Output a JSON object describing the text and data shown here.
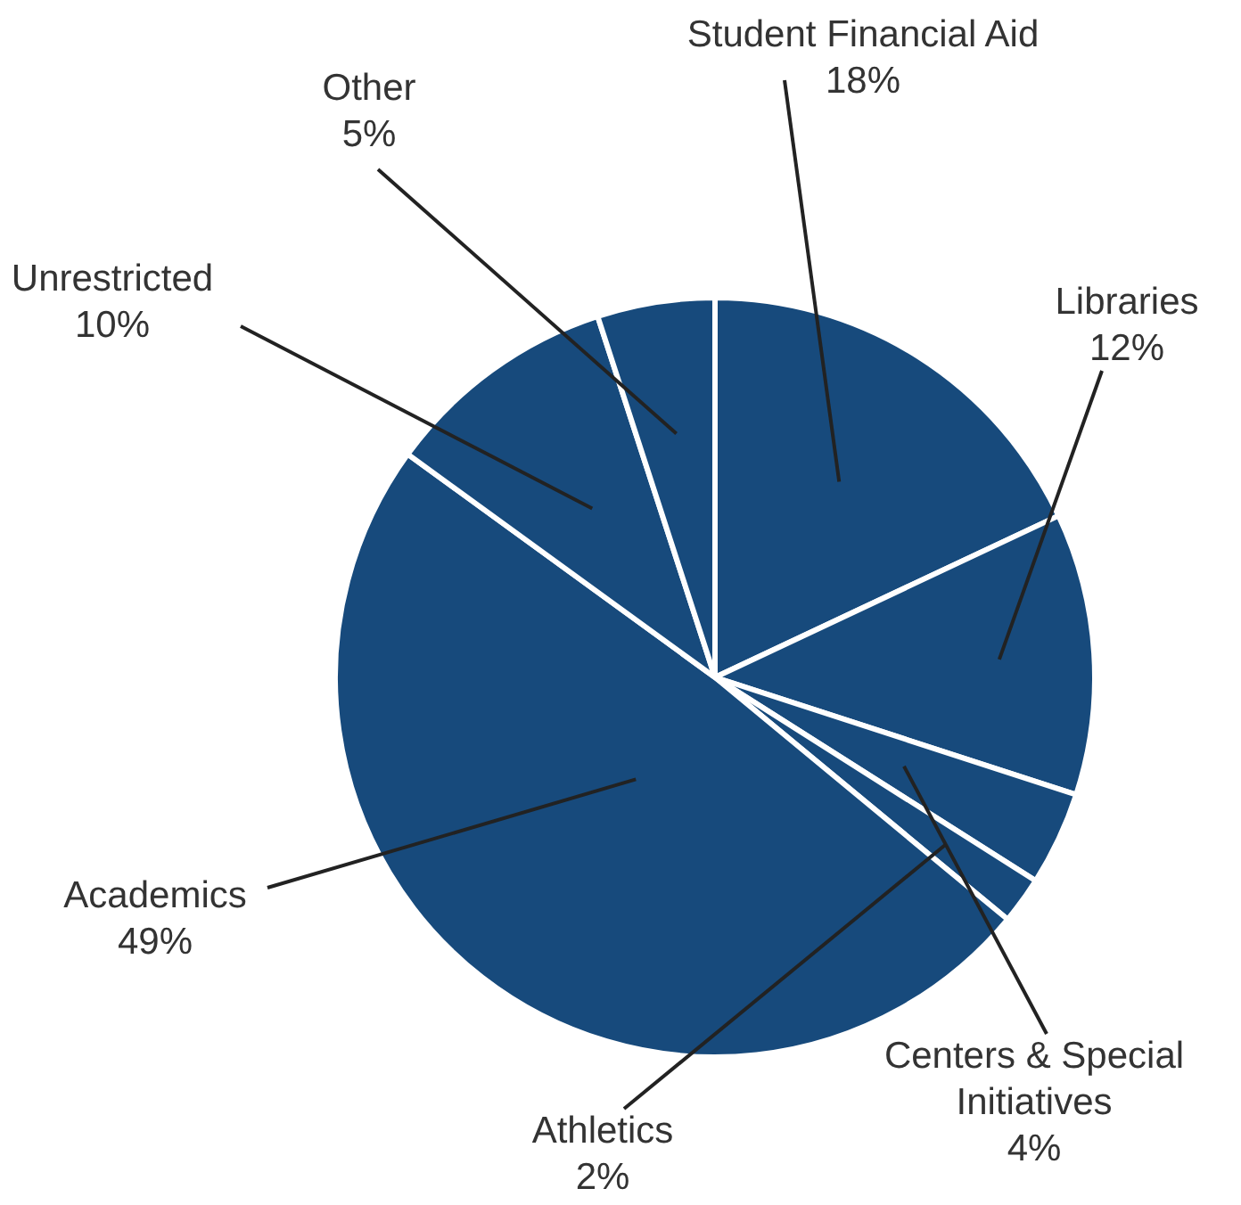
{
  "chart_data": {
    "type": "pie",
    "categories": [
      "Student Financial Aid",
      "Libraries",
      "Centers & Special Initiatives",
      "Athletics",
      "Academics",
      "Unrestricted",
      "Other"
    ],
    "values": [
      18,
      12,
      4,
      2,
      49,
      10,
      5
    ],
    "value_labels": [
      "18%",
      "12%",
      "4%",
      "2%",
      "49%",
      "10%",
      "5%"
    ],
    "colors": [
      "#174a7c",
      "#174a7c",
      "#174a7c",
      "#174a7c",
      "#174a7c",
      "#174a7c",
      "#174a7c"
    ]
  }
}
